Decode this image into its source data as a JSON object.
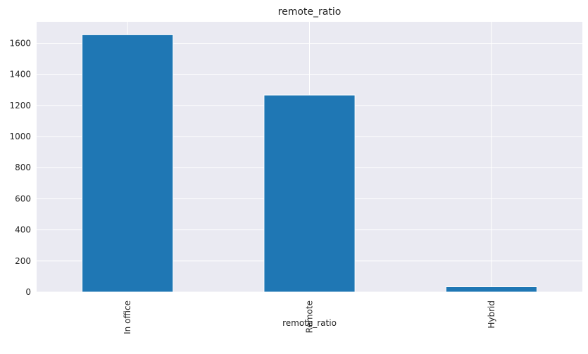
{
  "chart_data": {
    "type": "bar",
    "title": "remote_ratio",
    "xlabel": "remote_ratio",
    "ylabel": "",
    "categories": [
      "In office",
      "Remote",
      "Hybrid"
    ],
    "values": [
      1655,
      1267,
      34
    ],
    "ylim": [
      0,
      1738
    ],
    "yticks": [
      0,
      200,
      400,
      600,
      800,
      1000,
      1200,
      1400,
      1600
    ],
    "ytick_labels": [
      "0",
      "200",
      "400",
      "600",
      "800",
      "1000",
      "1200",
      "1400",
      "1600"
    ],
    "grid": true,
    "legend": "none",
    "bar_color": "#1f77b4",
    "background_color": "#eaeaf2"
  }
}
